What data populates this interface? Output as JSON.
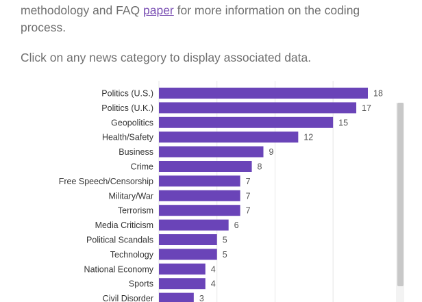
{
  "intro": {
    "line1_prefix": "methodology and FAQ ",
    "link_text": "paper",
    "line1_suffix": " for more information on the coding",
    "line2": "process."
  },
  "instruction": "Click on any news category to display associated data.",
  "colors": {
    "bar": "#6a44b8",
    "grid": "#e6e6e6",
    "text": "#333333",
    "value": "#555555"
  },
  "chart_data": {
    "type": "bar",
    "orientation": "horizontal",
    "categories": [
      "Politics (U.S.)",
      "Politics (U.K.)",
      "Geopolitics",
      "Health/Safety",
      "Business",
      "Crime",
      "Free Speech/Censorship",
      "Military/War",
      "Terrorism",
      "Media Criticism",
      "Political Scandals",
      "Technology",
      "National Economy",
      "Sports",
      "Civil Disorder"
    ],
    "values": [
      18,
      17,
      15,
      12,
      9,
      8,
      7,
      7,
      7,
      6,
      5,
      5,
      4,
      4,
      3
    ],
    "xlim": [
      0,
      18
    ],
    "grid": true,
    "title": "",
    "xlabel": "",
    "ylabel": ""
  }
}
